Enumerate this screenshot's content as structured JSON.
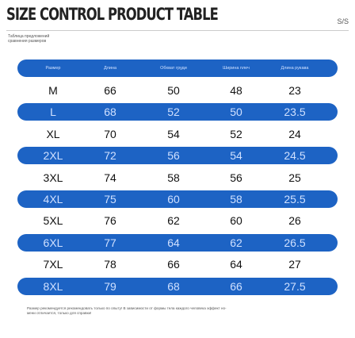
{
  "header": {
    "title": "SIZE CONTROL PRODUCT TABLE",
    "tag": "S/S",
    "subtitle": [
      "Таблица предложений",
      "сравнения размеров"
    ]
  },
  "table": {
    "columns": [
      "Размер",
      "Длина",
      "Обхват груди",
      "Ширина плеч",
      "Длина рукава"
    ],
    "rows": [
      [
        "M",
        66,
        50,
        48,
        23
      ],
      [
        "L",
        68,
        52,
        50,
        23.5
      ],
      [
        "XL",
        70,
        54,
        52,
        24
      ],
      [
        "2XL",
        72,
        56,
        54,
        24.5
      ],
      [
        "3XL",
        74,
        58,
        56,
        25
      ],
      [
        "4XL",
        75,
        60,
        58,
        25.5
      ],
      [
        "5XL",
        76,
        62,
        60,
        26
      ],
      [
        "6XL",
        77,
        64,
        62,
        26.5
      ],
      [
        "7XL",
        78,
        66,
        64,
        27
      ],
      [
        "8XL",
        79,
        68,
        66,
        27.5
      ]
    ]
  },
  "footnote": [
    "Размер рекомендуется рекомендовать только по опыту! В зависимости от формы тела каждого человека эффект но-",
    "мени отличается, только для справки!"
  ]
}
